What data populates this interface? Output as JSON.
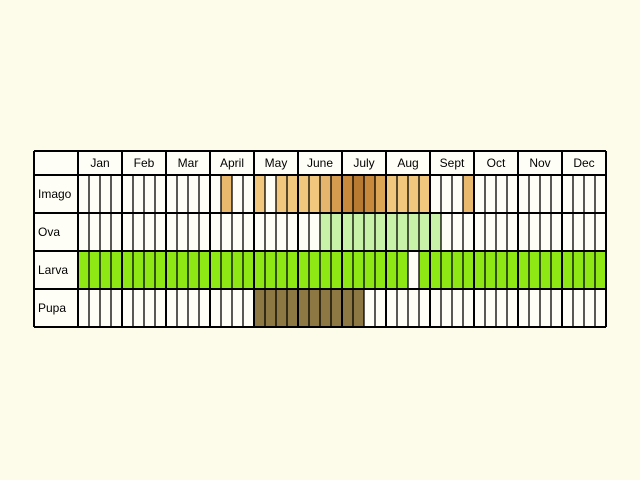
{
  "chart_data": {
    "type": "table",
    "months": [
      "Jan",
      "Feb",
      "Mar",
      "April",
      "May",
      "June",
      "July",
      "Aug",
      "Sept",
      "Oct",
      "Nov",
      "Dec"
    ],
    "periods_per_month": 4,
    "stages": [
      {
        "name": "Imago",
        "bands": [
          {
            "from": 13,
            "to": 14,
            "color": "#e9b96e"
          },
          {
            "from": 16,
            "to": 17,
            "color": "#f0c77c"
          },
          {
            "from": 18,
            "to": 22,
            "color": "#f0c77c"
          },
          {
            "from": 22,
            "to": 23,
            "color": "#e6b56d"
          },
          {
            "from": 23,
            "to": 24,
            "color": "#d59b4e"
          },
          {
            "from": 24,
            "to": 25,
            "color": "#c8893d"
          },
          {
            "from": 25,
            "to": 26,
            "color": "#b87a31"
          },
          {
            "from": 26,
            "to": 27,
            "color": "#c8893d"
          },
          {
            "from": 27,
            "to": 28,
            "color": "#dca555"
          },
          {
            "from": 28,
            "to": 32,
            "color": "#f0c77c"
          },
          {
            "from": 35,
            "to": 36,
            "color": "#e9b96e"
          }
        ]
      },
      {
        "name": "Ova",
        "bands": [
          {
            "from": 22,
            "to": 33,
            "color": "#c8f2a8"
          }
        ]
      },
      {
        "name": "Larva",
        "bands": [
          {
            "from": 0,
            "to": 30,
            "color": "#8de814"
          },
          {
            "from": 31,
            "to": 48,
            "color": "#8de814"
          }
        ]
      },
      {
        "name": "Pupa",
        "bands": [
          {
            "from": 16,
            "to": 26,
            "color": "#8d7742"
          }
        ]
      }
    ]
  }
}
